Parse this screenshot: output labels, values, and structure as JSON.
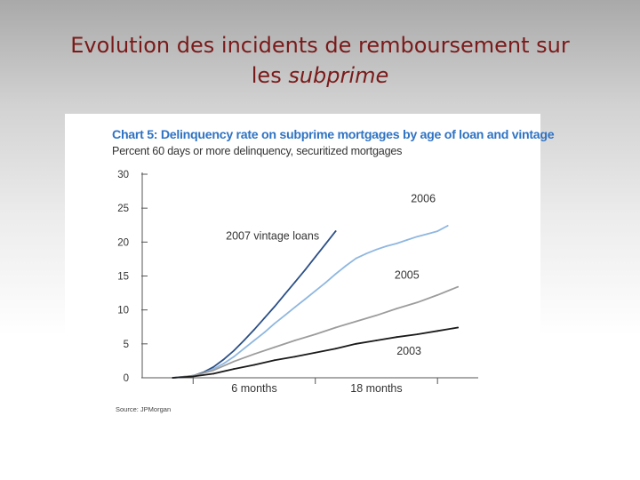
{
  "slide": {
    "title_line1": "Evolution des incidents de remboursement sur",
    "title_line2_prefix": "les ",
    "title_line2_emphasis": "subprime",
    "title_color": "#7a1a1a"
  },
  "chart_data": {
    "type": "line",
    "title": "Chart 5: Delinquency rate on subprime mortgages by age of loan and vintage",
    "subtitle": "Percent 60 days or more delinquency, securitized mortgages",
    "source": "Source: JPMorgan",
    "xlabel": "",
    "ylabel": "",
    "x_tick_labels": [
      {
        "x": 6,
        "label": "6 months"
      },
      {
        "x": 18,
        "label": "18 months"
      }
    ],
    "x_ticks": [
      0,
      12,
      24
    ],
    "xlim": [
      -5,
      28
    ],
    "ylim": [
      0,
      30
    ],
    "y_ticks": [
      0,
      5,
      10,
      15,
      20,
      25,
      30
    ],
    "grid": false,
    "series": [
      {
        "name": "2007 vintage loans",
        "color": "#2b4f86",
        "x": [
          -2,
          -1,
          0,
          1,
          2,
          3,
          4,
          5,
          6,
          7,
          8,
          9,
          10,
          11,
          12,
          13,
          14
        ],
        "y": [
          0.0,
          0.1,
          0.3,
          0.8,
          1.6,
          2.7,
          4.0,
          5.5,
          7.1,
          8.8,
          10.5,
          12.3,
          14.1,
          15.9,
          17.8,
          19.7,
          21.6
        ]
      },
      {
        "name": "2006",
        "color": "#8fb7e0",
        "x": [
          -2,
          0,
          1,
          2,
          3,
          4,
          5,
          6,
          7,
          8,
          9,
          10,
          11,
          12,
          13,
          14,
          15,
          16,
          17,
          18,
          19,
          20,
          21,
          22,
          23,
          24,
          25
        ],
        "y": [
          0.0,
          0.3,
          0.7,
          1.3,
          2.1,
          3.1,
          4.3,
          5.5,
          6.7,
          8.0,
          9.2,
          10.4,
          11.6,
          12.8,
          14.0,
          15.3,
          16.5,
          17.6,
          18.3,
          18.9,
          19.4,
          19.8,
          20.3,
          20.8,
          21.2,
          21.6,
          22.4
        ]
      },
      {
        "name": "2005",
        "color": "#9c9c9c",
        "x": [
          -2,
          0,
          2,
          4,
          6,
          8,
          10,
          12,
          14,
          16,
          18,
          20,
          22,
          24,
          26
        ],
        "y": [
          0.0,
          0.3,
          1.1,
          2.4,
          3.5,
          4.5,
          5.5,
          6.4,
          7.4,
          8.3,
          9.2,
          10.2,
          11.1,
          12.2,
          13.4
        ]
      },
      {
        "name": "2003",
        "color": "#1a1a1a",
        "x": [
          -2,
          0,
          2,
          4,
          6,
          8,
          10,
          12,
          14,
          16,
          18,
          20,
          22,
          24,
          26
        ],
        "y": [
          0.0,
          0.2,
          0.6,
          1.3,
          1.9,
          2.6,
          3.1,
          3.7,
          4.3,
          5.0,
          5.5,
          6.0,
          6.4,
          6.9,
          7.4
        ]
      }
    ],
    "annotations": [
      {
        "text": "2007 vintage loans",
        "x": 7.8,
        "y": 20.4
      },
      {
        "text": "2006",
        "x": 22.6,
        "y": 25.9
      },
      {
        "text": "2005",
        "x": 21.0,
        "y": 14.6
      },
      {
        "text": "2003",
        "x": 21.2,
        "y": 3.4
      }
    ]
  }
}
